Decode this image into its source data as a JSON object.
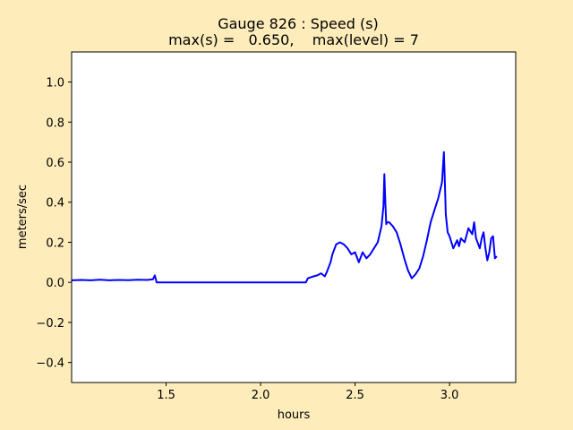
{
  "chart_data": {
    "type": "line",
    "title_line1": "Gauge 826 : Speed (s)",
    "title_line2": "max(s) =   0.650,    max(level) = 7",
    "xlabel": "hours",
    "ylabel": "meters/sec",
    "xlim": [
      1.0,
      3.35
    ],
    "ylim": [
      -0.5,
      1.15
    ],
    "xticks": [
      1.5,
      2.0,
      2.5,
      3.0
    ],
    "xtick_labels": [
      "1.5",
      "2.0",
      "2.5",
      "3.0"
    ],
    "yticks": [
      -0.4,
      -0.2,
      0.0,
      0.2,
      0.4,
      0.6,
      0.8,
      1.0
    ],
    "ytick_labels": [
      "−0.4",
      "−0.2",
      "0.0",
      "0.2",
      "0.4",
      "0.6",
      "0.8",
      "1.0"
    ],
    "grid": false,
    "series": [
      {
        "color": "#0000ff",
        "x": [
          1.0,
          1.05,
          1.1,
          1.15,
          1.2,
          1.25,
          1.3,
          1.35,
          1.4,
          1.43,
          1.44,
          1.45,
          1.5,
          1.6,
          1.8,
          2.0,
          2.2,
          2.24,
          2.25,
          2.28,
          2.3,
          2.32,
          2.34,
          2.35,
          2.37,
          2.38,
          2.4,
          2.42,
          2.44,
          2.46,
          2.48,
          2.5,
          2.52,
          2.54,
          2.56,
          2.58,
          2.6,
          2.62,
          2.64,
          2.65,
          2.655,
          2.66,
          2.665,
          2.67,
          2.68,
          2.7,
          2.72,
          2.74,
          2.76,
          2.78,
          2.8,
          2.82,
          2.84,
          2.86,
          2.88,
          2.9,
          2.92,
          2.94,
          2.96,
          2.97,
          2.975,
          2.98,
          2.99,
          3.0,
          3.02,
          3.04,
          3.05,
          3.06,
          3.08,
          3.1,
          3.12,
          3.13,
          3.14,
          3.16,
          3.17,
          3.18,
          3.19,
          3.2,
          3.21,
          3.22,
          3.23,
          3.24,
          3.25
        ],
        "y": [
          0.01,
          0.012,
          0.01,
          0.013,
          0.01,
          0.012,
          0.011,
          0.013,
          0.012,
          0.015,
          0.035,
          0.0,
          0.0,
          0.0,
          0.0,
          0.0,
          0.0,
          0.0,
          0.02,
          0.03,
          0.035,
          0.045,
          0.03,
          0.05,
          0.1,
          0.14,
          0.19,
          0.2,
          0.19,
          0.17,
          0.14,
          0.15,
          0.1,
          0.15,
          0.12,
          0.14,
          0.17,
          0.2,
          0.28,
          0.38,
          0.54,
          0.4,
          0.29,
          0.3,
          0.3,
          0.28,
          0.25,
          0.19,
          0.12,
          0.06,
          0.02,
          0.04,
          0.07,
          0.13,
          0.21,
          0.3,
          0.36,
          0.42,
          0.5,
          0.65,
          0.5,
          0.34,
          0.25,
          0.23,
          0.17,
          0.21,
          0.18,
          0.22,
          0.2,
          0.27,
          0.24,
          0.3,
          0.22,
          0.17,
          0.22,
          0.25,
          0.17,
          0.11,
          0.15,
          0.22,
          0.23,
          0.12,
          0.13
        ]
      }
    ]
  }
}
